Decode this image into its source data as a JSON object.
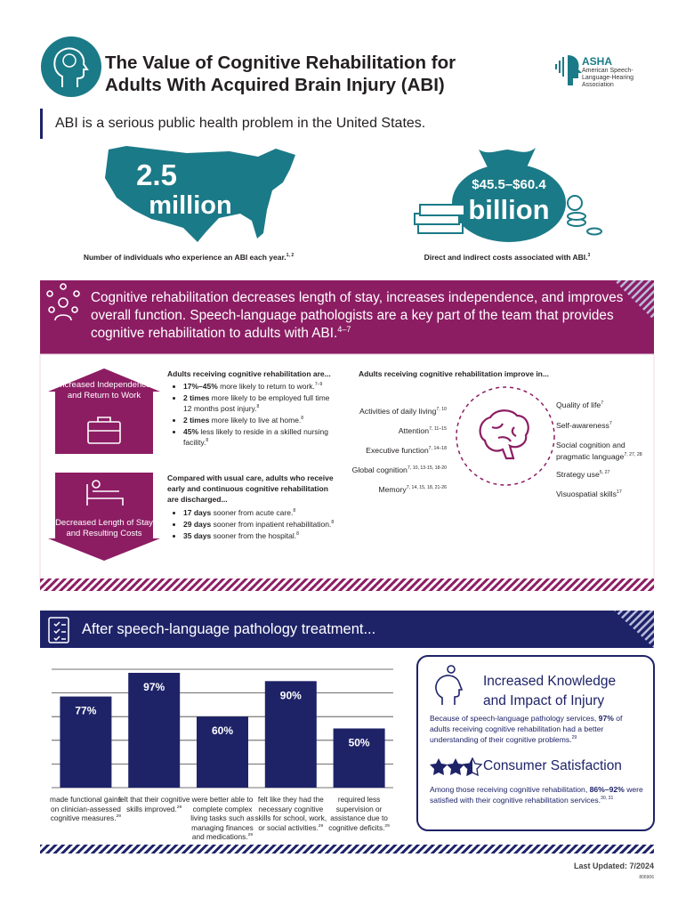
{
  "header": {
    "title_lines": [
      "The Value of Cognitive Rehabilitation for",
      "Adults With Acquired Brain Injury (ABI)"
    ],
    "logo": {
      "name": "ASHA",
      "full_name": "American Speech-Language-Hearing Association"
    }
  },
  "intro": "ABI is a serious public health problem in the United States.",
  "stats": [
    {
      "number": "2.5",
      "unit": "million",
      "caption": "Number of individuals who experience an ABI each year.",
      "ref": "1, 2"
    },
    {
      "number": "$45.5–$60.4",
      "unit": "billion",
      "caption": "Direct and indirect costs associated with ABI.",
      "ref": "3"
    }
  ],
  "banner": {
    "text": "Cognitive rehabilitation decreases length of stay, increases independence, and improves overall function. Speech-language pathologists are a key part of the team that provides cognitive rehabilitation to adults with ABI.",
    "ref": "4–7"
  },
  "independence": {
    "label": "Increased Independence and Return to Work",
    "heading": "Adults receiving cognitive rehabilitation are...",
    "items": [
      {
        "bold": "17%–45%",
        "text": " more likely to return to work.",
        "ref": "7–9"
      },
      {
        "bold": "2 times",
        "text": " more likely to be employed full time 12 months post injury.",
        "ref": "8"
      },
      {
        "bold": "2 times",
        "text": " more likely to live at home.",
        "ref": "8"
      },
      {
        "bold": "45%",
        "text": " less likely to reside in a skilled nursing facility.",
        "ref": "8"
      }
    ]
  },
  "length_of_stay": {
    "label": "Decreased Length of Stay and Resulting Costs",
    "heading": "Compared with usual care, adults who receive early and continuous cognitive rehabilitation are discharged...",
    "items": [
      {
        "bold": "17 days",
        "text": " sooner from acute care.",
        "ref": "8"
      },
      {
        "bold": "29 days",
        "text": " sooner from inpatient rehabilitation.",
        "ref": "8"
      },
      {
        "bold": "35 days",
        "text": " sooner from the hospital.",
        "ref": "8"
      }
    ]
  },
  "improve": {
    "heading": "Adults receiving cognitive rehabilitation improve in...",
    "left": [
      {
        "text": "Activities of daily living",
        "ref": "7, 10"
      },
      {
        "text": "Attention",
        "ref": "7, 11–15"
      },
      {
        "text": "Executive function",
        "ref": "7, 14–18"
      },
      {
        "text": "Global cognition",
        "ref": "7, 10, 13-15, 18-20"
      },
      {
        "text": "Memory",
        "ref": "7, 14, 15, 18, 21-26"
      }
    ],
    "right": [
      {
        "text": "Quality of life",
        "ref": "7"
      },
      {
        "text": "Self-awareness",
        "ref": "7"
      },
      {
        "text": "Social cognition and pragmatic language",
        "ref": "7, 27, 28"
      },
      {
        "text": "Strategy use",
        "ref": "5, 27"
      },
      {
        "text": "Visuospatial skills",
        "ref": "17"
      }
    ]
  },
  "treatment": {
    "title": "After speech-language pathology treatment..."
  },
  "chart_data": {
    "type": "bar",
    "color": "#1e2368",
    "categories": [
      "made functional gains on clinician-assessed cognitive measures.",
      "felt that their cognitive skills improved.",
      "were better able to complete complex living tasks such as managing finances and medications.",
      "felt like they had the necessary cognitive skills for school, work, or social activities.",
      "required less supervision or assistance due to cognitive deficits."
    ],
    "category_refs": [
      "29",
      "29",
      "29",
      "29",
      "29"
    ],
    "values": [
      77,
      97,
      60,
      90,
      50
    ],
    "value_labels": [
      "77%",
      "97%",
      "60%",
      "90%",
      "50%"
    ],
    "ylim": [
      0,
      100
    ],
    "yticks": [
      0,
      20,
      40,
      60,
      80,
      100
    ],
    "grid": true
  },
  "knowledge": {
    "title_lines": [
      "Increased Knowledge",
      "and Impact of Injury"
    ],
    "text_before": "Because of speech-language pathology services, ",
    "bold": "97%",
    "text_after": " of adults receiving cognitive rehabilitation had a better understanding of their cognitive problems.",
    "ref": "29"
  },
  "satisfaction": {
    "title": "Consumer Satisfaction",
    "text_before": "Among those receiving cognitive rehabilitation, ",
    "bold": "86%–92%",
    "text_after": " were satisfied with their cognitive rehabilitation services.",
    "ref": "30, 31"
  },
  "footer": {
    "updated": "Last Updated: 7/2024",
    "code": "806906"
  }
}
